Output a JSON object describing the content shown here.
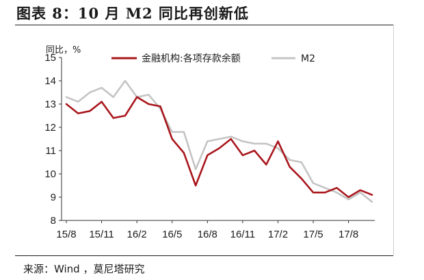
{
  "header": {
    "title": "图表 8：10 月 M2 同比再创新低",
    "source": "来源：Wind ，莫尼塔研究"
  },
  "chart_data": {
    "type": "line",
    "title": "",
    "xlabel": "",
    "ylabel": "同比，%",
    "ylim": [
      8,
      15
    ],
    "yticks": [
      8,
      9,
      10,
      11,
      12,
      13,
      14,
      15
    ],
    "xtick_labels": [
      "15/8",
      "15/11",
      "16/2",
      "16/5",
      "16/8",
      "16/11",
      "17/2",
      "17/5",
      "17/8"
    ],
    "x": [
      "15/8",
      "15/9",
      "15/10",
      "15/11",
      "15/12",
      "16/1",
      "16/2",
      "16/3",
      "16/4",
      "16/5",
      "16/6",
      "16/7",
      "16/8",
      "16/9",
      "16/10",
      "16/11",
      "16/12",
      "17/1",
      "17/2",
      "17/3",
      "17/4",
      "17/5",
      "17/6",
      "17/7",
      "17/8",
      "17/9",
      "17/10"
    ],
    "grid": false,
    "legend_position": "top",
    "series": [
      {
        "name": "金融机构:各项存款余额",
        "color": "#a8151b",
        "values": [
          13.0,
          12.6,
          12.7,
          13.1,
          12.4,
          12.5,
          13.3,
          13.0,
          12.9,
          11.5,
          10.9,
          9.5,
          10.8,
          11.1,
          11.5,
          10.8,
          11.0,
          10.4,
          11.4,
          10.3,
          9.8,
          9.2,
          9.2,
          9.4,
          9.0,
          9.3,
          9.1
        ]
      },
      {
        "name": "M2",
        "color": "#c4c4c4",
        "values": [
          13.3,
          13.1,
          13.5,
          13.7,
          13.3,
          14.0,
          13.3,
          13.4,
          12.8,
          11.8,
          11.8,
          10.2,
          11.4,
          11.5,
          11.6,
          11.4,
          11.3,
          11.3,
          11.1,
          10.6,
          10.5,
          9.6,
          9.4,
          9.2,
          8.9,
          9.2,
          8.8
        ]
      }
    ]
  }
}
